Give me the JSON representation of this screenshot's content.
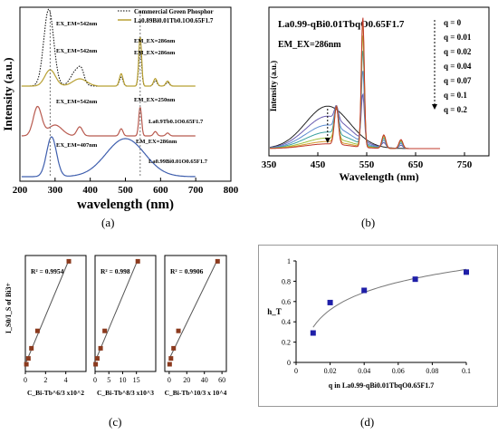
{
  "panels": [
    {
      "id": "a",
      "caption": "(a)"
    },
    {
      "id": "b",
      "caption": "(b)"
    },
    {
      "id": "c",
      "caption": "(c)"
    },
    {
      "id": "d",
      "caption": "(d)"
    }
  ],
  "chart_data": [
    {
      "panel": "a",
      "type": "line",
      "xlabel": "wavelength (nm)",
      "ylabel": "Intensity (a.u.)",
      "xlim": [
        200,
        800
      ],
      "xticks": [
        200,
        300,
        400,
        500,
        600,
        700,
        800
      ],
      "legend": [
        "Commercial Green Phosphor",
        "La0.89Bi0.01Tb0.1O0.65F1.7"
      ],
      "legend_placement": "top-right",
      "annotations": [
        "EX_EM=542nm",
        "EX_EM=542nm",
        "EM_EX=286nm",
        "EM_EX=286nm",
        "EX_EM=542nm",
        "EM_EX=250nm",
        "La0.9Tb0.1O0.65F1.7",
        "EX_EM=407nm",
        "EM_EX=286nm",
        "La0.99Bi0.01O0.65F1.7"
      ],
      "series": [
        {
          "name": "Commercial Green Phosphor",
          "color": "#000000",
          "style": "dotted",
          "excitation_peak_nm": 282,
          "emission_peaks_nm": [
            488,
            542,
            585,
            620
          ]
        },
        {
          "name": "La0.89Bi0.01Tb0.1O0.65F1.7",
          "color": "#b8a033",
          "style": "solid",
          "excitation_peak_nm": 286,
          "emission_peaks_nm": [
            488,
            542,
            585,
            620
          ]
        },
        {
          "name": "La0.9Tb0.1O0.65F1.7",
          "color": "#b85a4f",
          "style": "solid",
          "excitation_peak_nm": 250,
          "emission_peaks_nm": [
            488,
            542,
            585,
            620
          ]
        },
        {
          "name": "La0.99Bi0.01O0.65F1.7",
          "color": "#3f5fae",
          "style": "solid",
          "excitation_peak_nm": 290,
          "emission_peak_nm": 500
        }
      ]
    },
    {
      "panel": "b",
      "type": "line",
      "xlabel": "Wavelength (nm)",
      "ylabel": "Intensity (a.u.)",
      "xlim": [
        350,
        800
      ],
      "xticks": [
        350,
        450,
        550,
        650,
        750
      ],
      "title": "La0.99-qBi0.01TbqO0.65F1.7",
      "subtitle": "EM_EX=286nm",
      "legend_placement": "right",
      "series": [
        {
          "name": "q = 0",
          "color": "#222222",
          "broad_peak_nm": 470,
          "broad_rel": 0.72,
          "tb_rel": 0.0
        },
        {
          "name": "q = 0.01",
          "color": "#6a5cb0",
          "broad_peak_nm": 470,
          "broad_rel": 0.55,
          "tb_rel": 0.35
        },
        {
          "name": "q = 0.02",
          "color": "#5a8ad0",
          "broad_peak_nm": 470,
          "broad_rel": 0.4,
          "tb_rel": 0.55
        },
        {
          "name": "q = 0.04",
          "color": "#3aa0a0",
          "broad_peak_nm": 470,
          "broad_rel": 0.28,
          "tb_rel": 0.72
        },
        {
          "name": "q = 0.07",
          "color": "#9bbf3a",
          "broad_peak_nm": 470,
          "broad_rel": 0.18,
          "tb_rel": 0.85
        },
        {
          "name": "q = 0.1",
          "color": "#d39a2a",
          "broad_peak_nm": 470,
          "broad_rel": 0.12,
          "tb_rel": 0.95
        },
        {
          "name": "q = 0.2",
          "color": "#c0392b",
          "broad_peak_nm": 470,
          "broad_rel": 0.08,
          "tb_rel": 1.0
        }
      ],
      "tb_peaks_nm": [
        488,
        542,
        585,
        620
      ]
    },
    {
      "panel": "c",
      "type": "scatter",
      "ylabel": "I_S0/I_S of Bi3+",
      "subplots": [
        {
          "xlabel": "C_Bi-Tb^6/3 x10^2",
          "xlim": [
            0,
            6
          ],
          "xticks": [
            0,
            2,
            4
          ],
          "r2": "R² = 0.9954",
          "x": [
            0.1,
            0.3,
            0.6,
            1.2,
            4.3
          ],
          "y": [
            0.5,
            0.9,
            1.6,
            2.8,
            7.6
          ]
        },
        {
          "xlabel": "C_Bi-Tb^8/3 x10^3",
          "xlim": [
            0,
            22
          ],
          "xticks": [
            0,
            5,
            10,
            15
          ],
          "r2": "R² = 0.998",
          "x": [
            0.2,
            0.8,
            2.0,
            3.5,
            15.5
          ],
          "y": [
            0.5,
            0.9,
            1.6,
            2.8,
            7.6
          ]
        },
        {
          "xlabel": "C_Bi-Tb^10/3 x 10^4",
          "xlim": [
            -5,
            65
          ],
          "xticks": [
            0,
            20,
            40,
            60
          ],
          "r2": "R² = 0.9906",
          "x": [
            0.5,
            2.0,
            5.0,
            10.5,
            55.0
          ],
          "y": [
            0.5,
            0.9,
            1.6,
            2.8,
            7.6
          ]
        }
      ],
      "marker_color": "#8b3a1e",
      "fit_line_color": "#555555"
    },
    {
      "panel": "d",
      "type": "scatter",
      "xlabel": "q in La0.99-qBi0.01TbqO0.65F1.7",
      "ylabel": "h_T",
      "xlim": [
        0,
        0.1
      ],
      "ylim": [
        0,
        1
      ],
      "xticks": [
        0,
        0.02,
        0.04,
        0.06,
        0.08,
        0.1
      ],
      "yticks": [
        0,
        0.2,
        0.4,
        0.6,
        0.8,
        1
      ],
      "x": [
        0.01,
        0.02,
        0.04,
        0.07,
        0.1
      ],
      "y": [
        0.29,
        0.59,
        0.71,
        0.82,
        0.89
      ],
      "marker_color": "#1f1fa8",
      "fit_line_color": "#777777"
    }
  ]
}
